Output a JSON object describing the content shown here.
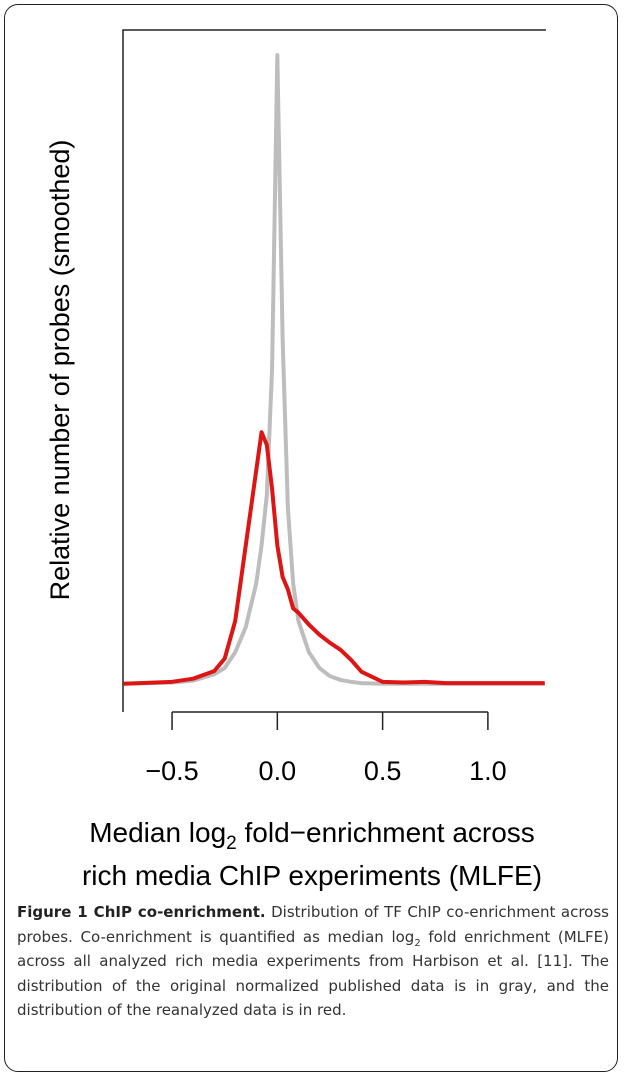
{
  "chart_data": {
    "type": "line",
    "ylabel": "Relative number of probes (smoothed)",
    "xlabel_lines": [
      [
        "Median log",
        "2",
        " fold−enrichment across"
      ],
      "rich media ChIP experiments (MLFE)"
    ],
    "x": [
      -0.73,
      -0.5,
      -0.4,
      -0.3,
      -0.25,
      -0.2,
      -0.15,
      -0.1,
      -0.075,
      -0.05,
      -0.025,
      0,
      0.025,
      0.05,
      0.075,
      0.1,
      0.15,
      0.2,
      0.25,
      0.3,
      0.35,
      0.4,
      0.5,
      0.6,
      0.7,
      0.8,
      1.0,
      1.27
    ],
    "series": [
      {
        "color": "#bdbdbd",
        "values": [
          0,
          0.002,
          0.005,
          0.015,
          0.025,
          0.05,
          0.09,
          0.16,
          0.22,
          0.3,
          0.5,
          1.0,
          0.55,
          0.28,
          0.16,
          0.1,
          0.05,
          0.025,
          0.012,
          0.006,
          0.003,
          0.001,
          0,
          0,
          0,
          0,
          0,
          0
        ]
      },
      {
        "color": "#dd1515",
        "values": [
          0,
          0.003,
          0.008,
          0.02,
          0.04,
          0.1,
          0.22,
          0.34,
          0.4,
          0.38,
          0.31,
          0.22,
          0.17,
          0.15,
          0.12,
          0.113,
          0.094,
          0.078,
          0.065,
          0.054,
          0.038,
          0.019,
          0.003,
          0.002,
          0.003,
          0.001,
          0.001,
          0.001
        ]
      }
    ],
    "xlim": [
      -0.733,
      1.276
    ],
    "ylim": [
      -0.045,
      1.04
    ],
    "xticks": [
      {
        "value": -0.5,
        "label": "−0.5"
      },
      {
        "value": 0,
        "label": "0.0"
      },
      {
        "value": 0.5,
        "label": "0.5"
      },
      {
        "value": 1,
        "label": "1.0"
      }
    ]
  },
  "caption": {
    "label": "Figure 1 ChIP co-enrichment.",
    "parts": [
      " Distribution of TF ChIP co-enrichment across probes. Co-enrichment is quantified as median log",
      "2",
      " fold enrichment (MLFE) across all analyzed rich media experiments from Harbison et al. [11]. The distribution of the original normalized published data is in gray, and the distribution of the reanalyzed data is in red."
    ]
  }
}
